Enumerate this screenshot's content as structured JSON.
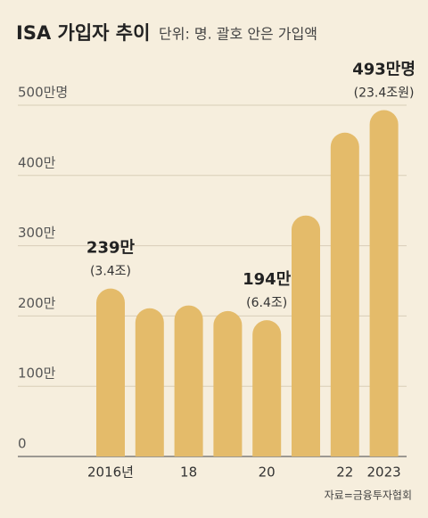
{
  "chart_data": {
    "type": "bar",
    "title": "ISA 가입자 추이",
    "subtitle": "단위: 명. 괄호 안은 가입액",
    "categories": [
      "2016년",
      null,
      "18",
      null,
      "20",
      null,
      "22",
      "2023"
    ],
    "values": [
      239,
      211,
      215,
      207,
      194,
      343,
      461,
      493
    ],
    "value_labels": [
      "239만",
      null,
      null,
      null,
      "194만",
      null,
      null,
      "493만명"
    ],
    "amount_labels": [
      "(3.4조)",
      null,
      null,
      null,
      "(6.4조)",
      null,
      null,
      "(23.4조원)"
    ],
    "color": "#e4bb6a",
    "ylim": [
      0,
      500
    ],
    "yticks": [
      0,
      {
        "value": 100,
        "label": "100만"
      },
      {
        "value": 200,
        "label": "200만"
      },
      {
        "value": 300,
        "label": "300만"
      },
      {
        "value": 400,
        "label": "400만"
      },
      {
        "value": 500,
        "label": "500만명"
      }
    ],
    "grid": true,
    "source": "자료=금융투자협회"
  }
}
